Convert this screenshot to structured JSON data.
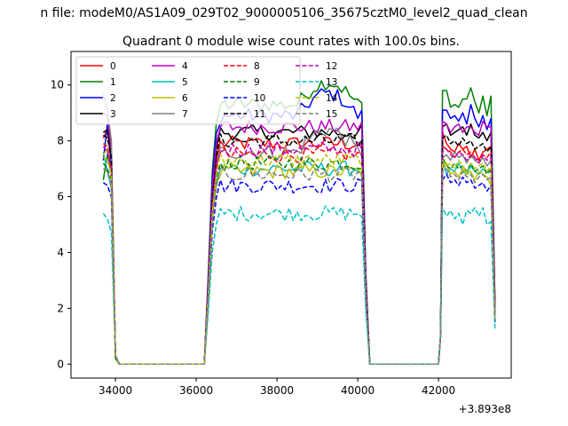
{
  "figure": {
    "suptitle": "n file: modeM0/AS1A09_029T02_9000005106_35675cztM0_level2_quad_clean",
    "title": "Quadrant 0 module wise count rates with 100.0s bins.",
    "offset_text": "+3.893e8"
  },
  "chart_data": {
    "type": "line",
    "title": "Quadrant 0 module wise count rates with 100.0s bins.",
    "xlabel": "",
    "ylabel": "",
    "x_offset": 389300000,
    "xlim": [
      32900,
      43800
    ],
    "ylim": [
      -0.5,
      11.2
    ],
    "xticks": [
      34000,
      36000,
      38000,
      40000,
      42000
    ],
    "yticks": [
      0,
      2,
      4,
      6,
      8,
      10
    ],
    "xtick_labels": [
      "34000",
      "36000",
      "38000",
      "40000",
      "42000"
    ],
    "ytick_labels": [
      "0",
      "2",
      "4",
      "6",
      "8",
      "10"
    ],
    "legend_position": "upper-left",
    "x_segments": {
      "seg1": [
        33700,
        33800,
        33900,
        34000,
        34100
      ],
      "gap1": [
        34200,
        36200
      ],
      "seg2_start": 36300,
      "seg2_end": 40200,
      "gap2": [
        40300,
        42000
      ],
      "seg3_start": 42100,
      "seg3_end": 43400,
      "bin": 100
    },
    "series": [
      {
        "name": "0",
        "color": "#ff0000",
        "dash": "solid",
        "level": 7.9,
        "seg1": [
          8.1,
          8.4,
          7.2,
          0.3,
          0.0
        ],
        "seg3": [
          8.3,
          7.9,
          7.7,
          7.6,
          7.9,
          7.7,
          7.8,
          7.4,
          7.7,
          7.3,
          7.6,
          7.7,
          7.8,
          2.0
        ]
      },
      {
        "name": "1",
        "color": "#008000",
        "dash": "solid",
        "level": 9.3,
        "seg1": [
          6.6,
          7.5,
          6.8,
          0.2,
          0.0
        ],
        "seg3": [
          9.8,
          9.8,
          9.2,
          9.3,
          9.2,
          9.5,
          9.5,
          9.9,
          9.4,
          9.0,
          9.6,
          8.9,
          9.6,
          2.1
        ]
      },
      {
        "name": "2",
        "color": "#0000ff",
        "dash": "solid",
        "level": 8.9,
        "seg1": [
          7.3,
          8.6,
          7.1,
          0.3,
          0.0
        ],
        "seg3": [
          9.1,
          9.1,
          8.8,
          8.9,
          8.7,
          9.0,
          8.6,
          9.3,
          8.8,
          8.5,
          8.9,
          8.4,
          8.8,
          2.0
        ]
      },
      {
        "name": "3",
        "color": "#000000",
        "dash": "solid",
        "level": 8.3,
        "seg1": [
          8.3,
          8.4,
          7.5,
          0.3,
          0.0
        ],
        "seg3": [
          8.5,
          8.6,
          8.2,
          8.3,
          8.4,
          8.5,
          8.2,
          8.6,
          8.2,
          8.1,
          8.3,
          8.0,
          8.3,
          1.9
        ]
      },
      {
        "name": "4",
        "color": "#bf00bf",
        "dash": "solid",
        "level": 8.5,
        "seg1": [
          9.0,
          8.9,
          7.6,
          0.3,
          0.0
        ],
        "seg3": [
          8.7,
          8.6,
          8.3,
          8.5,
          8.6,
          8.3,
          8.5,
          8.5,
          8.3,
          8.2,
          8.7,
          8.5,
          8.5,
          1.9
        ]
      },
      {
        "name": "5",
        "color": "#00bfbf",
        "dash": "solid",
        "level": 7.0,
        "seg1": [
          7.6,
          6.9,
          6.3,
          0.3,
          0.0
        ],
        "seg3": [
          7.3,
          6.8,
          7.0,
          6.9,
          7.2,
          6.9,
          6.8,
          7.1,
          6.9,
          6.8,
          7.0,
          6.9,
          6.9,
          1.6
        ]
      },
      {
        "name": "6",
        "color": "#bfbf00",
        "dash": "solid",
        "level": 6.9,
        "seg1": [
          7.5,
          7.7,
          6.9,
          0.3,
          0.0
        ],
        "seg3": [
          7.0,
          7.2,
          6.8,
          6.9,
          6.7,
          7.0,
          6.8,
          6.9,
          6.6,
          6.9,
          6.8,
          6.7,
          6.4,
          1.5
        ]
      },
      {
        "name": "7",
        "color": "#808080",
        "dash": "solid",
        "level": 7.6,
        "seg1": [
          9.7,
          9.1,
          8.0,
          0.3,
          0.0
        ],
        "seg3": [
          7.4,
          7.5,
          7.3,
          7.6,
          7.4,
          7.5,
          7.2,
          7.5,
          7.3,
          7.2,
          7.4,
          7.1,
          7.3,
          1.7
        ]
      },
      {
        "name": "8",
        "color": "#ff0000",
        "dash": "dashed",
        "level": 7.5,
        "seg1": [
          7.9,
          7.8,
          6.9,
          0.3,
          0.0
        ],
        "seg3": [
          7.8,
          7.7,
          7.6,
          7.4,
          7.6,
          7.7,
          7.5,
          7.6,
          7.4,
          7.3,
          7.5,
          7.4,
          7.6,
          1.8
        ]
      },
      {
        "name": "9",
        "color": "#008000",
        "dash": "dashed",
        "level": 7.2,
        "seg1": [
          7.2,
          7.0,
          6.6,
          0.3,
          0.0
        ],
        "seg3": [
          7.4,
          7.1,
          7.0,
          7.2,
          7.0,
          7.1,
          6.9,
          7.2,
          6.9,
          7.0,
          7.1,
          6.8,
          7.0,
          1.7
        ]
      },
      {
        "name": "10",
        "color": "#0000ff",
        "dash": "dashed",
        "level": 6.4,
        "seg1": [
          6.5,
          6.4,
          6.0,
          0.3,
          0.0
        ],
        "seg3": [
          6.6,
          6.8,
          6.5,
          6.6,
          6.4,
          6.7,
          6.5,
          6.6,
          6.3,
          6.4,
          6.5,
          6.2,
          6.4,
          1.5
        ]
      },
      {
        "name": "11",
        "color": "#000000",
        "dash": "dashed",
        "level": 8.0,
        "seg1": [
          8.2,
          8.1,
          7.4,
          0.3,
          0.0
        ],
        "seg3": [
          8.1,
          8.2,
          7.9,
          8.0,
          7.8,
          8.1,
          7.9,
          8.0,
          7.7,
          7.8,
          7.9,
          7.6,
          7.8,
          1.8
        ]
      },
      {
        "name": "12",
        "color": "#bf00bf",
        "dash": "dashed",
        "level": 7.7,
        "seg1": [
          7.8,
          7.6,
          7.0,
          0.3,
          0.0
        ],
        "seg3": [
          7.6,
          7.7,
          7.5,
          7.4,
          7.6,
          7.5,
          7.3,
          7.5,
          7.4,
          7.2,
          7.5,
          7.3,
          7.4,
          1.7
        ]
      },
      {
        "name": "13",
        "color": "#00bfbf",
        "dash": "dashed",
        "level": 5.4,
        "seg1": [
          5.4,
          5.2,
          4.7,
          0.3,
          0.0
        ],
        "seg3": [
          5.6,
          5.3,
          5.5,
          5.2,
          5.4,
          5.0,
          5.5,
          5.4,
          5.6,
          5.3,
          5.6,
          5.0,
          5.1,
          1.2
        ]
      },
      {
        "name": "14",
        "color": "#bfbf00",
        "dash": "dashed",
        "level": 7.3,
        "seg1": [
          7.4,
          7.3,
          6.8,
          0.3,
          0.0
        ],
        "seg3": [
          7.3,
          7.1,
          7.2,
          7.0,
          7.3,
          7.1,
          6.9,
          7.2,
          7.0,
          7.1,
          7.2,
          6.9,
          7.1,
          1.6
        ]
      },
      {
        "name": "15",
        "color": "#808080",
        "dash": "dashed",
        "level": 6.8,
        "seg1": [
          7.0,
          6.9,
          6.4,
          0.3,
          0.0
        ],
        "seg3": [
          6.9,
          7.0,
          6.7,
          6.8,
          6.6,
          6.9,
          6.7,
          6.8,
          6.5,
          6.7,
          6.8,
          6.6,
          6.7,
          1.6
        ]
      }
    ]
  }
}
